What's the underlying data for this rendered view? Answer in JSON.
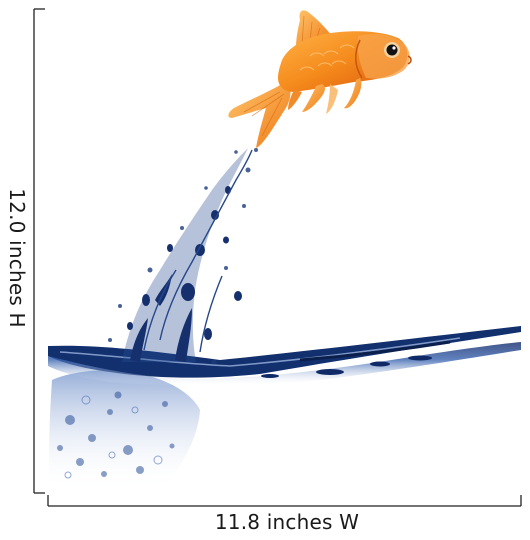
{
  "product": {
    "image_subject": "goldfish-jumping-from-water",
    "dimensions": {
      "height_label": "12.0 inches H",
      "width_label": "11.8 inches W"
    }
  },
  "colors": {
    "fish_orange": "#f58a1c",
    "fish_deep": "#e35e0c",
    "water_blue": "#1d3f86",
    "ruler_line": "#222222"
  }
}
